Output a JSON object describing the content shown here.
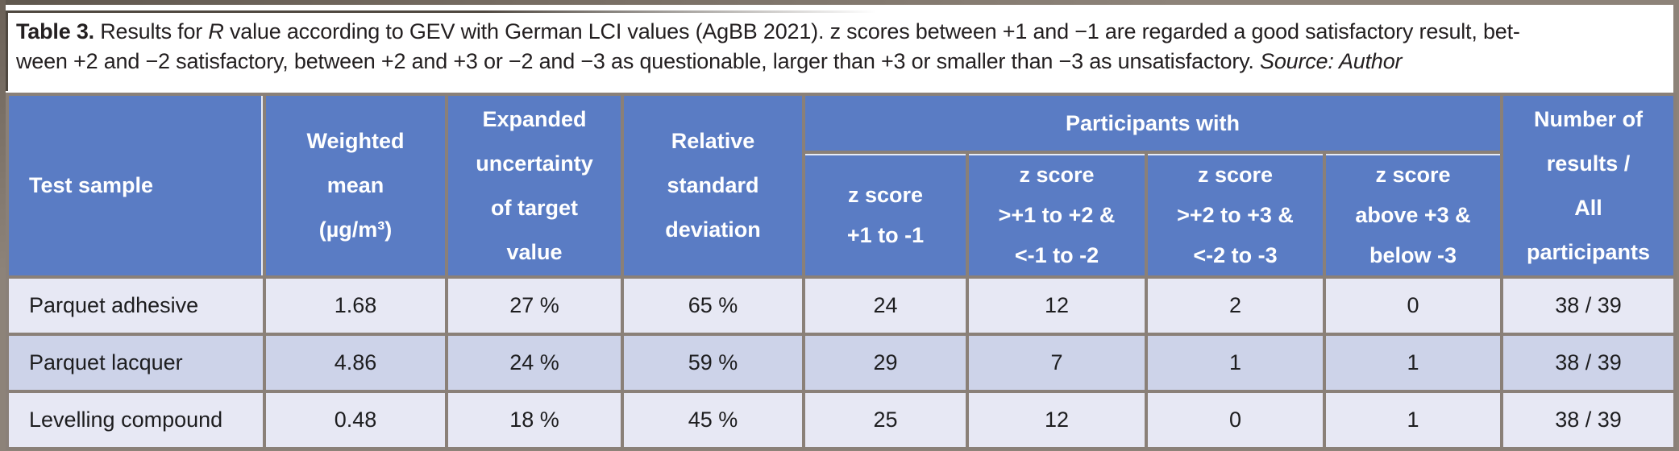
{
  "colors": {
    "header_bg": "#5a7cc4",
    "header_text": "#ffffff",
    "row_light": "#e7e8f4",
    "row_mid": "#cdd3e9",
    "grid": "#8a8078",
    "frame": "#8d8379",
    "frame_dark": "#4f4840",
    "body_text": "#1d1d1f",
    "caption_text": "#231f20"
  },
  "caption": {
    "label": "Table 3.",
    "l1a": " Results for ",
    "l1r": "R",
    "l1b": " value according to GEV with German LCI values (AgBB 2021). z scores between +1 and −1 are regarded a good satisfactory result, bet-",
    "l2a": "ween +2 and −2 satisfactory, between +2 and +3 or −2 and −3 as questionable, larger than +3 or smaller than −3 as unsatisfactory. ",
    "l2b": "Source: Author"
  },
  "table": {
    "header": {
      "test_sample": "Test sample",
      "weighted_mean_lines": [
        "Weighted",
        "mean",
        "(µg/m³)"
      ],
      "expanded_uncertainty_lines": [
        "Expanded",
        "uncertainty",
        "of target",
        "value"
      ],
      "relative_sd_lines": [
        "Relative",
        "standard",
        "deviation"
      ],
      "participants_with": "Participants with",
      "z1_lines": [
        "z score",
        "+1 to -1"
      ],
      "z2_lines": [
        "z score",
        ">+1 to +2 &",
        "<-1 to -2"
      ],
      "z3_lines": [
        "z score",
        ">+2 to +3 &",
        "<-2 to -3"
      ],
      "z4_lines": [
        "z score",
        "above +3 &",
        "below -3"
      ],
      "number_results_lines": [
        "Number of",
        "results /",
        "All",
        "participants"
      ]
    },
    "rows": [
      {
        "test_sample": "Parquet adhesive",
        "weighted_mean": "1.68",
        "expanded_uncertainty": "27 %",
        "relative_sd": "65 %",
        "z1": "24",
        "z2": "12",
        "z3": "2",
        "z4": "0",
        "results": "38 / 39"
      },
      {
        "test_sample": "Parquet lacquer",
        "weighted_mean": "4.86",
        "expanded_uncertainty": "24 %",
        "relative_sd": "59 %",
        "z1": "29",
        "z2": "7",
        "z3": "1",
        "z4": "1",
        "results": "38 / 39"
      },
      {
        "test_sample": "Levelling compound",
        "weighted_mean": "0.48",
        "expanded_uncertainty": "18 %",
        "relative_sd": "45 %",
        "z1": "25",
        "z2": "12",
        "z3": "0",
        "z4": "1",
        "results": "38 / 39"
      }
    ]
  }
}
